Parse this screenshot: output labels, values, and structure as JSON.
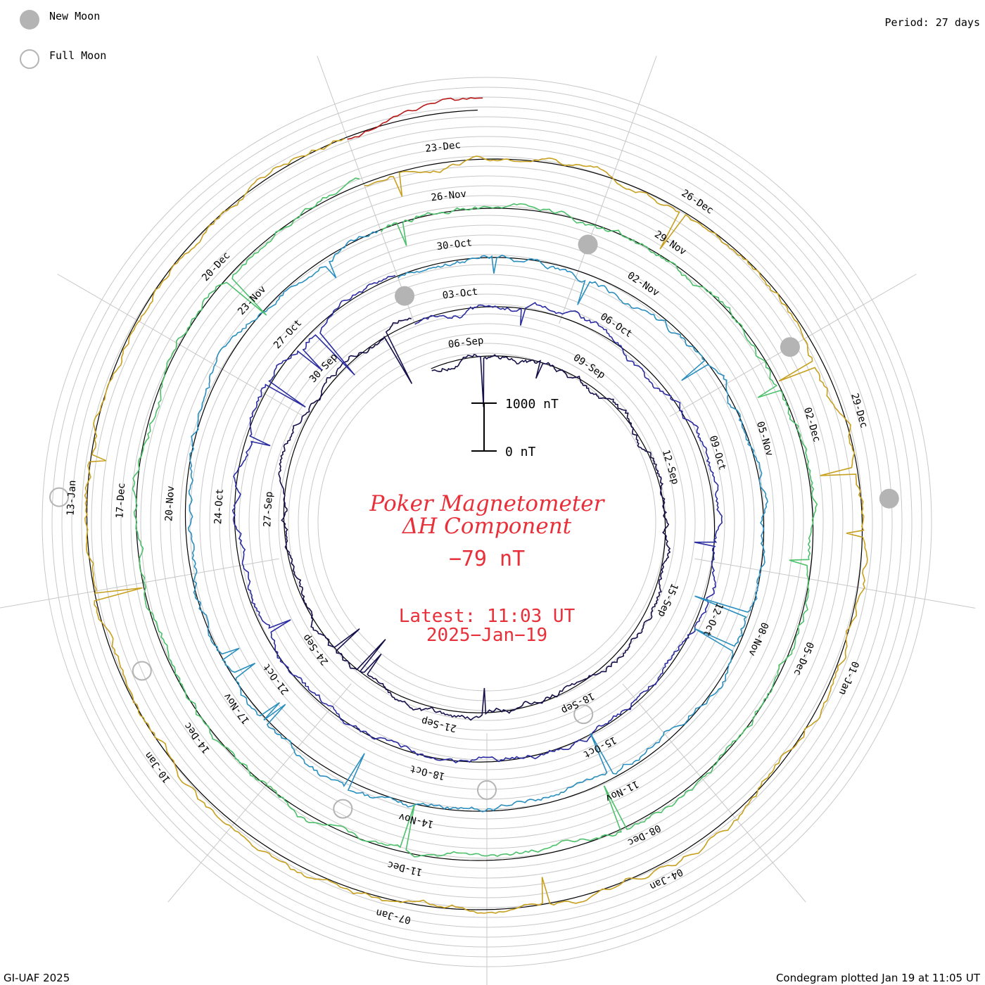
{
  "legend": {
    "new_moon_label": "New Moon",
    "full_moon_label": "Full Moon",
    "new_moon_color": "#b4b4b4",
    "full_moon_color": "#b4b4b4"
  },
  "header": {
    "period": "Period: 27 days"
  },
  "title": {
    "line1": "Poker Magnetometer",
    "line2": "ΔH Component",
    "value": "−79 nT",
    "latest": "Latest: 11:03 UT",
    "date": "2025−Jan−19",
    "color": "#e8303a"
  },
  "scale": {
    "top_label": "1000 nT",
    "bottom_label": "0 nT"
  },
  "footer": {
    "left": "GI-UAF 2025",
    "right": "Condegram plotted Jan 19 at 11:05 UT"
  },
  "chart_data": {
    "type": "line",
    "subtype": "polar-condegram",
    "period_days": 27,
    "start_date": "2024-09-05",
    "end_date": "2025-01-19T11:03",
    "baseline_nT": 0,
    "scale_bar_nT": [
      0,
      1000
    ],
    "latest_value_nT": -79,
    "turns": [
      {
        "index": 1,
        "color": "#15104a",
        "date_labels": [
          "06-Sep",
          "09-Sep",
          "12-Sep",
          "15-Sep",
          "18-Sep",
          "21-Sep",
          "24-Sep",
          "27-Sep",
          "30-Sep"
        ]
      },
      {
        "index": 2,
        "color": "#2a2ca0",
        "date_labels": [
          "03-Oct",
          "06-Oct",
          "09-Oct",
          "12-Oct",
          "15-Oct",
          "18-Oct",
          "21-Oct",
          "24-Oct",
          "27-Oct"
        ]
      },
      {
        "index": 3,
        "color": "#2a8fbf",
        "date_labels": [
          "30-Oct",
          "02-Nov",
          "05-Nov",
          "08-Nov",
          "11-Nov",
          "14-Nov",
          "17-Nov",
          "20-Nov",
          "23-Nov"
        ]
      },
      {
        "index": 4,
        "color": "#4cc06a",
        "date_labels": [
          "26-Nov",
          "29-Nov",
          "02-Dec",
          "05-Dec",
          "08-Dec",
          "11-Dec",
          "14-Dec",
          "17-Dec",
          "20-Dec"
        ]
      },
      {
        "index": 5,
        "color": "#c8a020",
        "date_labels": [
          "23-Dec",
          "26-Dec",
          "29-Dec",
          "01-Jan",
          "04-Jan",
          "07-Jan",
          "10-Jan",
          "13-Jan"
        ]
      },
      {
        "index": 6,
        "color": "#b81818",
        "date_labels": []
      }
    ],
    "new_moons": [
      "2024-10-02",
      "2024-11-01",
      "2024-12-01",
      "2024-12-30"
    ],
    "full_moons": [
      "2024-09-18",
      "2024-10-17",
      "2024-11-15",
      "2024-12-15",
      "2025-01-13"
    ],
    "annotations": []
  }
}
